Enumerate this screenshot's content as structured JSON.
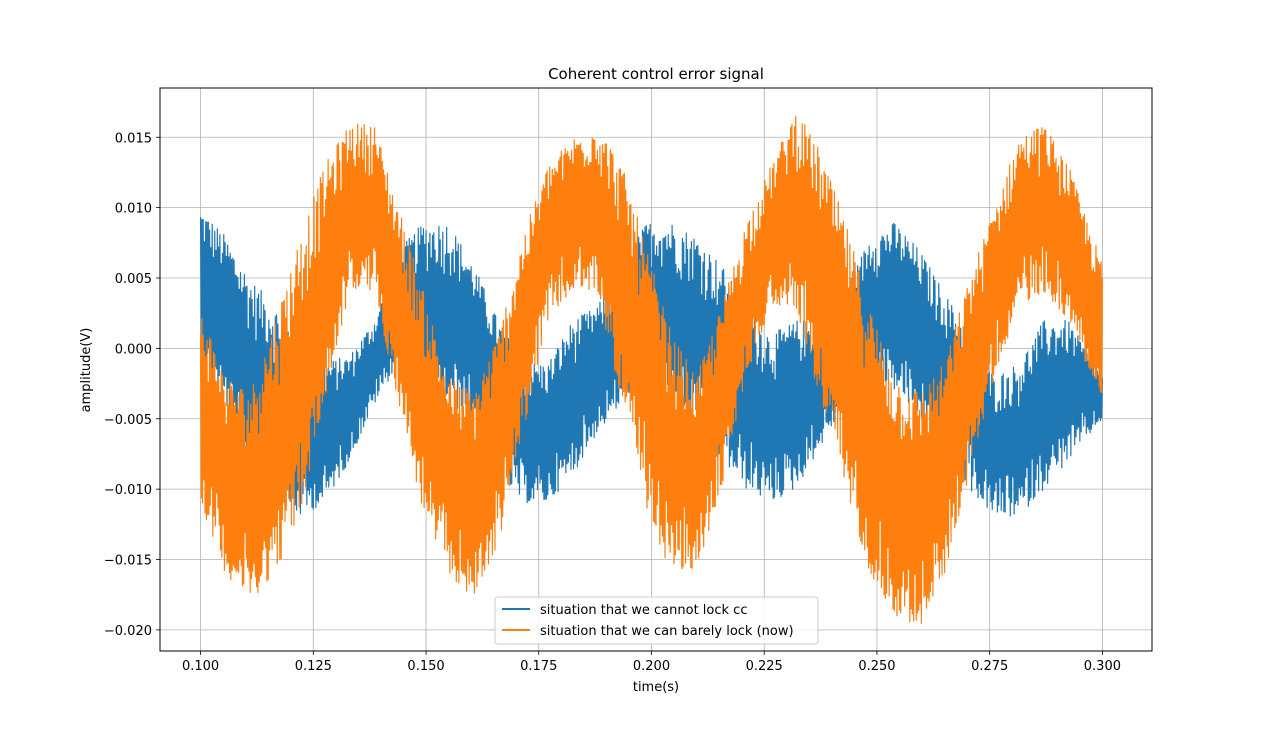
{
  "chart_data": {
    "type": "line",
    "title": "Coherent control error signal",
    "xlabel": "time(s)",
    "ylabel": "amplitude(V)",
    "xlim": [
      0.091,
      0.311
    ],
    "ylim": [
      -0.0215,
      0.0185
    ],
    "xticks": [
      0.1,
      0.125,
      0.15,
      0.175,
      0.2,
      0.225,
      0.25,
      0.275,
      0.3
    ],
    "xtick_labels": [
      "0.100",
      "0.125",
      "0.150",
      "0.175",
      "0.200",
      "0.225",
      "0.250",
      "0.275",
      "0.300"
    ],
    "yticks": [
      -0.02,
      -0.015,
      -0.01,
      -0.005,
      0.0,
      0.005,
      0.01,
      0.015
    ],
    "ytick_labels": [
      "−0.020",
      "−0.015",
      "−0.010",
      "−0.005",
      "0.000",
      "0.005",
      "0.010",
      "0.015"
    ],
    "grid": true,
    "legend_position": "lower center",
    "series": [
      {
        "name": "situation that we cannot lock cc",
        "color": "#1f77b4",
        "x": [
          0.1,
          0.1055,
          0.111,
          0.1165,
          0.122,
          0.1275,
          0.133,
          0.1385,
          0.144,
          0.1495,
          0.155,
          0.1605,
          0.166,
          0.1715,
          0.177,
          0.1825,
          0.188,
          0.1935,
          0.199,
          0.2045,
          0.21,
          0.2155,
          0.221,
          0.2265,
          0.232,
          0.2375,
          0.243,
          0.2485,
          0.254,
          0.2595,
          0.265,
          0.2705,
          0.276,
          0.2815,
          0.287,
          0.2925,
          0.3
        ],
        "envelope_min": [
          -0.001,
          -0.004,
          -0.009,
          -0.011,
          -0.012,
          -0.011,
          -0.008,
          -0.004,
          -0.001,
          -0.004,
          -0.004,
          -0.005,
          -0.009,
          -0.011,
          -0.011,
          -0.009,
          -0.006,
          -0.004,
          -0.001,
          -0.004,
          -0.005,
          -0.008,
          -0.01,
          -0.011,
          -0.01,
          -0.007,
          -0.004,
          -0.002,
          -0.003,
          -0.005,
          -0.007,
          -0.01,
          -0.012,
          -0.012,
          -0.01,
          -0.008,
          -0.005
        ],
        "envelope_max": [
          0.01,
          0.008,
          0.005,
          0.003,
          0.001,
          -0.001,
          -0.0005,
          0.002,
          0.007,
          0.009,
          0.009,
          0.006,
          0.002,
          -0.001,
          -0.001,
          0.002,
          0.003,
          0.006,
          0.009,
          0.009,
          0.008,
          0.006,
          0.003,
          0.001,
          0.002,
          0.002,
          0.004,
          0.008,
          0.009,
          0.007,
          0.004,
          0.001,
          -0.002,
          -0.001,
          0.002,
          0.002,
          -0.002
        ]
      },
      {
        "name": "situation that we can barely lock (now)",
        "color": "#ff7f0e",
        "x": [
          0.1,
          0.1055,
          0.111,
          0.1165,
          0.122,
          0.1275,
          0.133,
          0.1385,
          0.144,
          0.1495,
          0.155,
          0.1605,
          0.166,
          0.1715,
          0.177,
          0.1825,
          0.188,
          0.1935,
          0.199,
          0.2045,
          0.21,
          0.2155,
          0.221,
          0.2265,
          0.232,
          0.2375,
          0.243,
          0.2485,
          0.254,
          0.2595,
          0.265,
          0.2705,
          0.276,
          0.2815,
          0.287,
          0.2925,
          0.3
        ],
        "envelope_min": [
          -0.011,
          -0.016,
          -0.018,
          -0.016,
          -0.012,
          -0.004,
          0.004,
          0.004,
          -0.004,
          -0.012,
          -0.016,
          -0.018,
          -0.014,
          -0.006,
          0.002,
          0.004,
          0.004,
          -0.004,
          -0.012,
          -0.016,
          -0.016,
          -0.01,
          -0.002,
          0.003,
          0.003,
          -0.004,
          -0.01,
          -0.016,
          -0.019,
          -0.02,
          -0.016,
          -0.009,
          -0.002,
          0.003,
          0.004,
          0.002,
          -0.004
        ],
        "envelope_max": [
          0.003,
          -0.002,
          -0.003,
          0.002,
          0.008,
          0.013,
          0.016,
          0.016,
          0.01,
          0.004,
          -0.002,
          -0.003,
          0.001,
          0.008,
          0.013,
          0.015,
          0.016,
          0.013,
          0.007,
          0.001,
          -0.002,
          0.003,
          0.009,
          0.013,
          0.017,
          0.014,
          0.009,
          0.003,
          -0.002,
          -0.003,
          -0.001,
          0.005,
          0.01,
          0.015,
          0.016,
          0.013,
          0.006
        ]
      }
    ]
  }
}
